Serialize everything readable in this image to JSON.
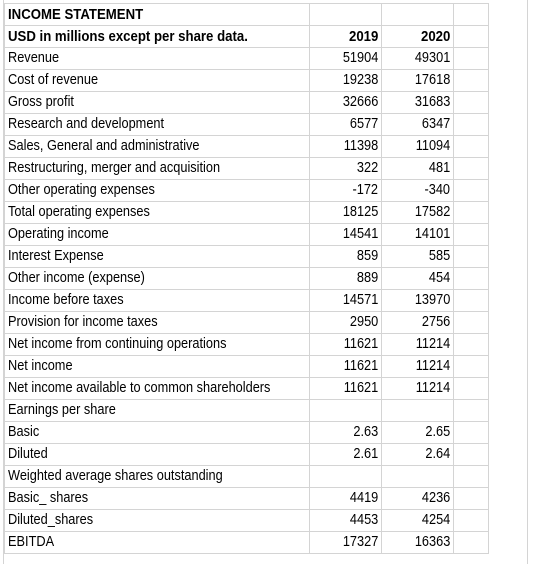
{
  "sheet": {
    "title": "INCOME STATEMENT",
    "header": {
      "label": "USD in millions except per share data.",
      "col1": "2019",
      "col2": "2020"
    },
    "rows": [
      {
        "label": "Revenue",
        "v2019": "51904",
        "v2020": "49301"
      },
      {
        "label": "Cost of revenue",
        "v2019": "19238",
        "v2020": "17618"
      },
      {
        "label": "Gross profit",
        "v2019": "32666",
        "v2020": "31683"
      },
      {
        "label": "Research and development",
        "v2019": "6577",
        "v2020": "6347"
      },
      {
        "label": "Sales, General and administrative",
        "v2019": "11398",
        "v2020": "11094"
      },
      {
        "label": "Restructuring, merger and acquisition",
        "v2019": "322",
        "v2020": "481"
      },
      {
        "label": "Other operating expenses",
        "v2019": "-172",
        "v2020": "-340"
      },
      {
        "label": "Total operating expenses",
        "v2019": "18125",
        "v2020": "17582"
      },
      {
        "label": "Operating income",
        "v2019": "14541",
        "v2020": "14101"
      },
      {
        "label": "Interest Expense",
        "v2019": "859",
        "v2020": "585"
      },
      {
        "label": "Other income (expense)",
        "v2019": "889",
        "v2020": "454"
      },
      {
        "label": "Income before taxes",
        "v2019": "14571",
        "v2020": "13970"
      },
      {
        "label": "Provision for income taxes",
        "v2019": "2950",
        "v2020": "2756"
      },
      {
        "label": "Net income from continuing operations",
        "v2019": "11621",
        "v2020": "11214"
      },
      {
        "label": "Net income",
        "v2019": "11621",
        "v2020": "11214"
      },
      {
        "label": "Net income available to common shareholders",
        "v2019": "11621",
        "v2020": "11214"
      },
      {
        "label": "Earnings per share",
        "v2019": "",
        "v2020": ""
      },
      {
        "label": "Basic",
        "v2019": "2.63",
        "v2020": "2.65"
      },
      {
        "label": "Diluted",
        "v2019": "2.61",
        "v2020": "2.64"
      },
      {
        "label": "Weighted average shares outstanding",
        "v2019": "",
        "v2020": ""
      },
      {
        "label": "Basic_ shares",
        "v2019": "4419",
        "v2020": "4236"
      },
      {
        "label": "Diluted_shares",
        "v2019": "4453",
        "v2020": "4254"
      },
      {
        "label": "EBITDA",
        "v2019": "17327",
        "v2020": "16363"
      }
    ]
  }
}
